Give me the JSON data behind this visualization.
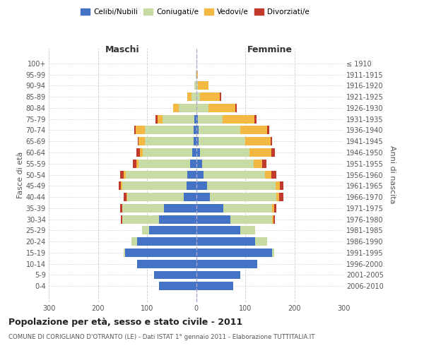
{
  "age_groups": [
    "100+",
    "95-99",
    "90-94",
    "85-89",
    "80-84",
    "75-79",
    "70-74",
    "65-69",
    "60-64",
    "55-59",
    "50-54",
    "45-49",
    "40-44",
    "35-39",
    "30-34",
    "25-29",
    "20-24",
    "15-19",
    "10-14",
    "5-9",
    "0-4"
  ],
  "birth_years": [
    "≤ 1910",
    "1911-1915",
    "1916-1920",
    "1921-1925",
    "1926-1930",
    "1931-1935",
    "1936-1940",
    "1941-1945",
    "1946-1950",
    "1951-1955",
    "1956-1960",
    "1961-1965",
    "1966-1970",
    "1971-1975",
    "1976-1980",
    "1981-1985",
    "1986-1990",
    "1991-1995",
    "1996-2000",
    "2001-2005",
    "2006-2010"
  ],
  "males": {
    "celibi": [
      0,
      0,
      0,
      0,
      0,
      3,
      5,
      5,
      8,
      12,
      18,
      20,
      25,
      65,
      75,
      95,
      120,
      145,
      120,
      85,
      75
    ],
    "coniugati": [
      0,
      1,
      3,
      10,
      35,
      65,
      100,
      100,
      100,
      105,
      125,
      130,
      115,
      85,
      75,
      15,
      12,
      3,
      0,
      0,
      0
    ],
    "vedovi": [
      0,
      0,
      1,
      8,
      12,
      10,
      18,
      12,
      6,
      4,
      4,
      3,
      2,
      0,
      0,
      0,
      0,
      0,
      0,
      0,
      0
    ],
    "divorziati": [
      0,
      0,
      0,
      0,
      0,
      5,
      3,
      2,
      8,
      8,
      8,
      5,
      5,
      5,
      3,
      0,
      0,
      0,
      0,
      0,
      0
    ]
  },
  "females": {
    "nubili": [
      0,
      0,
      0,
      0,
      0,
      4,
      5,
      5,
      8,
      12,
      15,
      22,
      28,
      55,
      70,
      90,
      120,
      155,
      125,
      90,
      75
    ],
    "coniugate": [
      0,
      0,
      3,
      8,
      25,
      50,
      85,
      95,
      100,
      105,
      125,
      140,
      135,
      100,
      85,
      30,
      25,
      4,
      0,
      0,
      0
    ],
    "vedove": [
      0,
      3,
      22,
      40,
      55,
      65,
      55,
      52,
      45,
      18,
      13,
      8,
      6,
      4,
      3,
      0,
      0,
      0,
      0,
      0,
      0
    ],
    "divorziate": [
      0,
      0,
      0,
      3,
      3,
      4,
      4,
      3,
      8,
      8,
      10,
      8,
      8,
      5,
      3,
      0,
      0,
      0,
      0,
      0,
      0
    ]
  },
  "colors": {
    "celibi_nubili": "#4472C4",
    "coniugati": "#c8dba4",
    "vedovi": "#f4b942",
    "divorziati": "#c0392b"
  },
  "title": "Popolazione per età, sesso e stato civile - 2011",
  "subtitle": "COMUNE DI CORIGLIANO D'OTRANTO (LE) - Dati ISTAT 1° gennaio 2011 - Elaborazione TUTTITALIA.IT",
  "xlabel_left": "Maschi",
  "xlabel_right": "Femmine",
  "ylabel_left": "Fasce di età",
  "ylabel_right": "Anni di nascita",
  "xlim": 300,
  "bg_color": "#ffffff",
  "grid_color": "#cccccc",
  "bar_height": 0.75
}
